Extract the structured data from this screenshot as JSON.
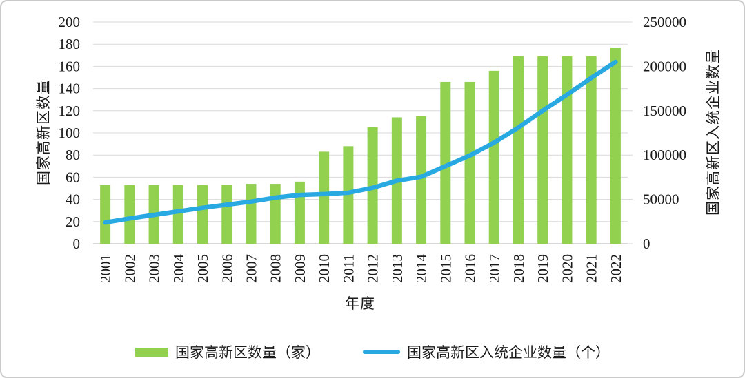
{
  "chart_data": {
    "type": "bar",
    "subtype": "combo-bar-line-dual-axis",
    "title": "",
    "categories": [
      "2001",
      "2002",
      "2003",
      "2004",
      "2005",
      "2006",
      "2007",
      "2008",
      "2009",
      "2010",
      "2011",
      "2012",
      "2013",
      "2014",
      "2015",
      "2016",
      "2017",
      "2018",
      "2019",
      "2020",
      "2021",
      "2022"
    ],
    "series": [
      {
        "name": "国家高新区数量（家）",
        "type": "bar",
        "axis": "left",
        "color": "#92d050",
        "values": [
          53,
          53,
          53,
          53,
          53,
          53,
          54,
          54,
          56,
          83,
          88,
          105,
          114,
          115,
          146,
          146,
          156,
          169,
          169,
          169,
          169,
          177
        ]
      },
      {
        "name": "国家高新区入统企业数量（个）",
        "type": "line",
        "axis": "right",
        "color": "#29a9e1",
        "values": [
          24000,
          28500,
          32500,
          36500,
          40500,
          44000,
          47500,
          52000,
          55000,
          56000,
          57500,
          63000,
          71000,
          75500,
          87500,
          99500,
          114000,
          131000,
          150000,
          168000,
          187000,
          205000
        ]
      }
    ],
    "x_axis": {
      "label": "年度"
    },
    "left_axis": {
      "label": "国家高新区数量",
      "min": 0,
      "max": 200,
      "step": 20,
      "ticks": [
        0,
        20,
        40,
        60,
        80,
        100,
        120,
        140,
        160,
        180,
        200
      ]
    },
    "right_axis": {
      "label": "国家高新区入统企业数量",
      "min": 0,
      "max": 250000,
      "step": 50000,
      "ticks": [
        0,
        50000,
        100000,
        150000,
        200000,
        250000
      ]
    },
    "grid": "horizontal",
    "legend_position": "bottom",
    "colors": {
      "grid": "#d9d9d9",
      "baseline": "#bfbfbf",
      "text": "#1a1a1a"
    }
  },
  "legend": {
    "items": [
      {
        "label": "国家高新区数量（家）",
        "swatch": "bar",
        "color": "#92d050"
      },
      {
        "label": "国家高新区入统企业数量（个）",
        "swatch": "line",
        "color": "#29a9e1"
      }
    ]
  }
}
